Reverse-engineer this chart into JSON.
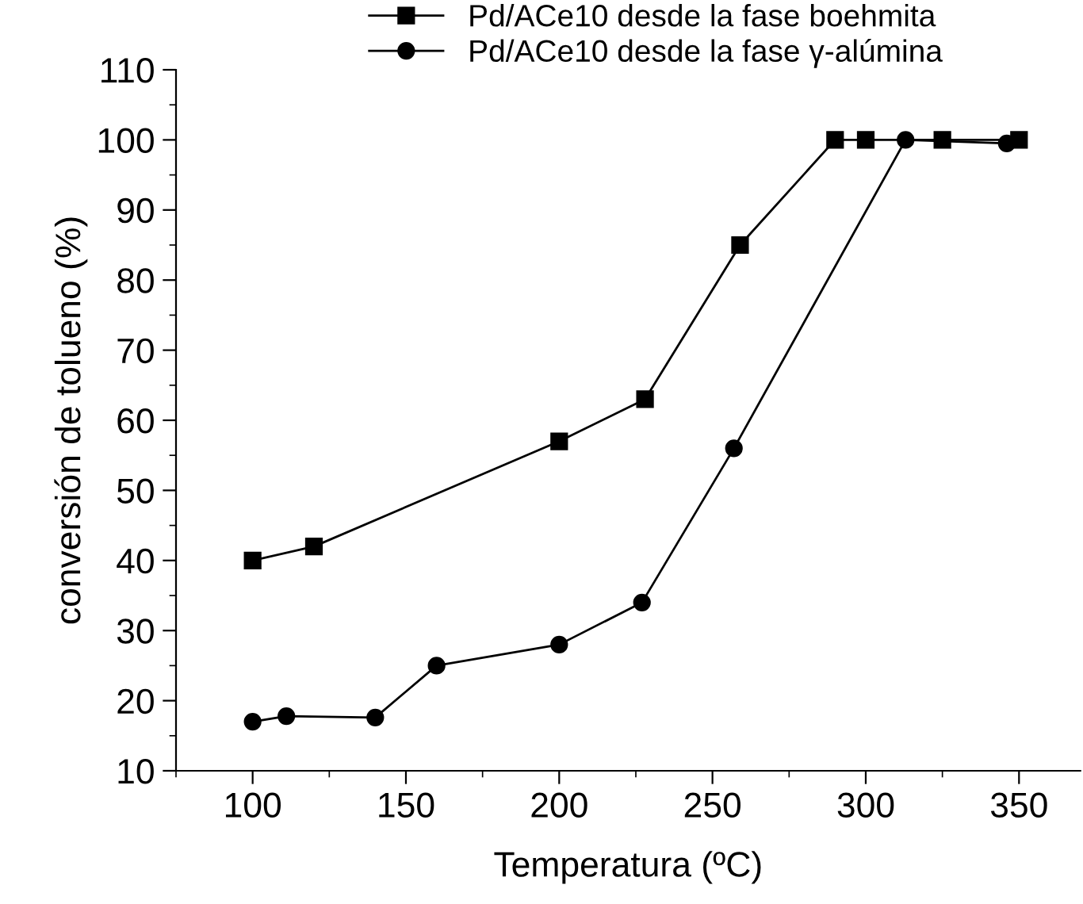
{
  "chart_data": {
    "type": "line",
    "xlabel": "Temperatura (ºC)",
    "ylabel": "conversión de tolueno (%)",
    "xlim": [
      75,
      370
    ],
    "ylim": [
      10,
      110
    ],
    "xticks": [
      {
        "value": 75,
        "label": null
      },
      100,
      {
        "value": 125,
        "label": null
      },
      150,
      {
        "value": 175,
        "label": null
      },
      200,
      {
        "value": 225,
        "label": null
      },
      250,
      {
        "value": 275,
        "label": null
      },
      300,
      {
        "value": 325,
        "label": null
      },
      350
    ],
    "yticks": [
      10,
      {
        "value": 15,
        "label": null
      },
      20,
      {
        "value": 25,
        "label": null
      },
      30,
      {
        "value": 35,
        "label": null
      },
      40,
      {
        "value": 45,
        "label": null
      },
      50,
      {
        "value": 55,
        "label": null
      },
      60,
      {
        "value": 65,
        "label": null
      },
      70,
      {
        "value": 75,
        "label": null
      },
      80,
      {
        "value": 85,
        "label": null
      },
      90,
      {
        "value": 95,
        "label": null
      },
      100,
      {
        "value": 105,
        "label": null
      },
      110
    ],
    "grid": false,
    "legend": "top",
    "line_style": "solid",
    "series": [
      {
        "name": "Pd/ACe10 desde la fase boehmita",
        "color": "#000000",
        "marker": "square",
        "x": [
          100,
          120,
          200,
          228,
          259,
          290,
          300,
          325,
          350
        ],
        "values": [
          40,
          42,
          57,
          63,
          85,
          100,
          100,
          100,
          100
        ]
      },
      {
        "name": "Pd/ACe10 desde la fase γ-alúmina",
        "color": "#000000",
        "marker": "circle",
        "x": [
          100,
          111,
          140,
          160,
          200,
          227,
          257,
          313,
          346
        ],
        "values": [
          17,
          17.8,
          17.6,
          25,
          28,
          34,
          56,
          100,
          99.5
        ]
      }
    ]
  }
}
